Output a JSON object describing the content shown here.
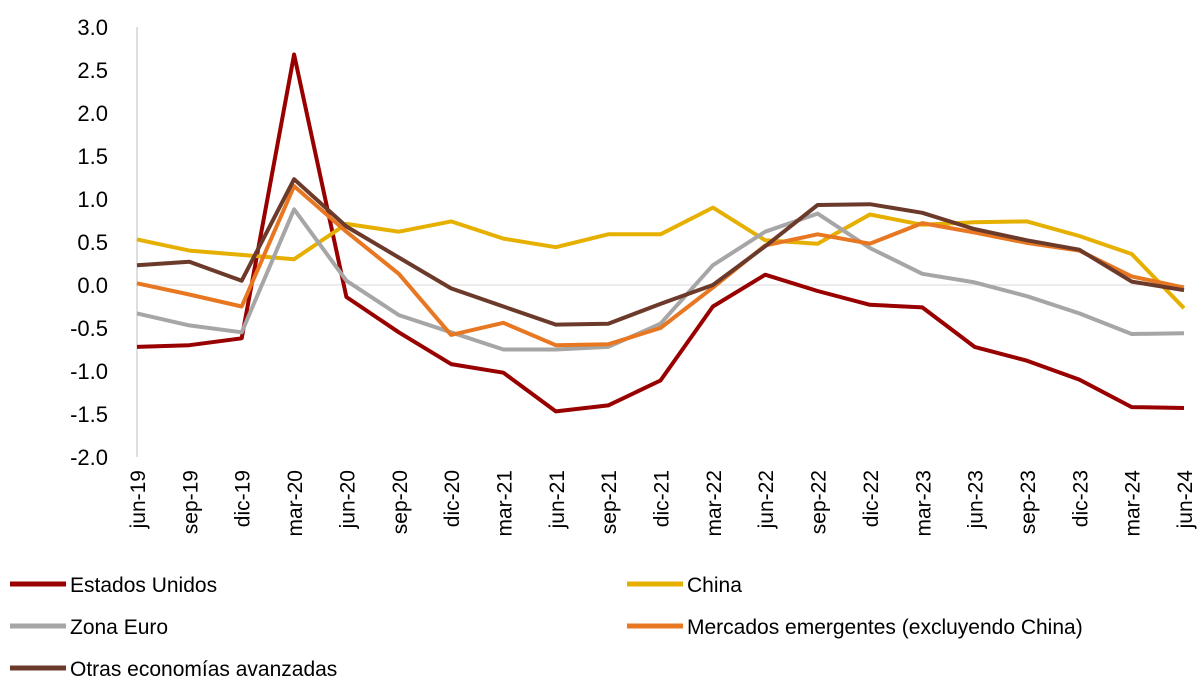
{
  "chart_data": {
    "type": "line",
    "categories": [
      "jun-19",
      "sep-19",
      "dic-19",
      "mar-20",
      "jun-20",
      "sep-20",
      "dic-20",
      "mar-21",
      "jun-21",
      "sep-21",
      "dic-21",
      "mar-22",
      "jun-22",
      "sep-22",
      "dic-22",
      "mar-23",
      "jun-23",
      "sep-23",
      "dic-23",
      "mar-24",
      "jun-24"
    ],
    "series": [
      {
        "name": "Estados Unidos",
        "color": "#990000",
        "values": [
          -0.72,
          -0.7,
          -0.62,
          2.68,
          -0.14,
          -0.55,
          -0.92,
          -1.02,
          -1.47,
          -1.4,
          -1.11,
          -0.25,
          0.12,
          -0.07,
          -0.23,
          -0.26,
          -0.72,
          -0.88,
          -1.1,
          -1.42,
          -1.43
        ]
      },
      {
        "name": "China",
        "color": "#e6b000",
        "values": [
          0.53,
          0.4,
          0.35,
          0.3,
          0.71,
          0.62,
          0.74,
          0.54,
          0.44,
          0.59,
          0.59,
          0.9,
          0.52,
          0.48,
          0.82,
          0.7,
          0.73,
          0.74,
          0.57,
          0.36,
          -0.27
        ]
      },
      {
        "name": "Zona Euro",
        "color": "#a6a6a6",
        "values": [
          -0.33,
          -0.47,
          -0.55,
          0.88,
          0.05,
          -0.35,
          -0.55,
          -0.75,
          -0.75,
          -0.72,
          -0.45,
          0.23,
          0.62,
          0.83,
          0.43,
          0.13,
          0.03,
          -0.13,
          -0.33,
          -0.57,
          -0.56
        ]
      },
      {
        "name": "Mercados emergentes (excluyendo China)",
        "color": "#e87722",
        "values": [
          0.02,
          -0.11,
          -0.25,
          1.15,
          0.62,
          0.13,
          -0.58,
          -0.44,
          -0.7,
          -0.69,
          -0.5,
          -0.03,
          0.46,
          0.59,
          0.48,
          0.72,
          0.61,
          0.49,
          0.4,
          0.1,
          -0.03
        ]
      },
      {
        "name": "Otras economías avanzadas",
        "color": "#6b3a2a",
        "values": [
          0.23,
          0.27,
          0.05,
          1.23,
          0.68,
          0.32,
          -0.04,
          -0.25,
          -0.46,
          -0.45,
          -0.22,
          0.0,
          0.45,
          0.93,
          0.94,
          0.84,
          0.65,
          0.52,
          0.41,
          0.04,
          -0.06
        ]
      }
    ],
    "ylim": [
      -2,
      3
    ],
    "yticks": [
      {
        "value": -2,
        "label": "-2.0"
      },
      -1.5,
      {
        "value": -1,
        "label": "-1.0"
      },
      -0.5,
      {
        "value": 0,
        "label": "0.0"
      },
      0.5,
      {
        "value": 1,
        "label": "1.0"
      },
      1.5,
      {
        "value": 2,
        "label": "2.0"
      },
      2.5,
      {
        "value": 3,
        "label": "3.0"
      }
    ],
    "grid": false
  }
}
